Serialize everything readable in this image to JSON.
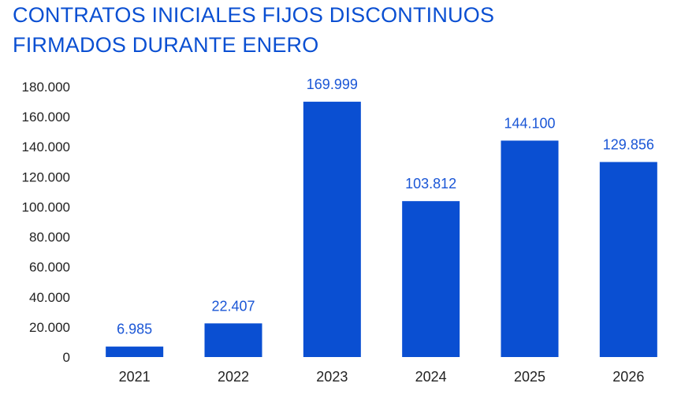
{
  "chart_data": {
    "type": "bar",
    "title_lines": [
      "CONTRATOS INICIALES FIJOS DISCONTINUOS",
      "FIRMADOS DURANTE ENERO"
    ],
    "categories": [
      "2021",
      "2022",
      "2023",
      "2024",
      "2025",
      "2026"
    ],
    "values": [
      6985,
      22407,
      169999,
      103812,
      144100,
      129856
    ],
    "value_labels": [
      "6.985",
      "22.407",
      "169.999",
      "103.812",
      "144.100",
      "129.856"
    ],
    "y_ticks": [
      0,
      20000,
      40000,
      60000,
      80000,
      100000,
      120000,
      140000,
      160000,
      180000
    ],
    "y_tick_labels": [
      "0",
      "20.000",
      "40.000",
      "60.000",
      "80.000",
      "100.000",
      "120.000",
      "140.000",
      "160.000",
      "180.000"
    ],
    "ylim": [
      0,
      180000
    ],
    "xlabel": "",
    "ylabel": "",
    "grid": false,
    "bar_color": "#0a4fd2",
    "label_color": "#1a56d6"
  }
}
